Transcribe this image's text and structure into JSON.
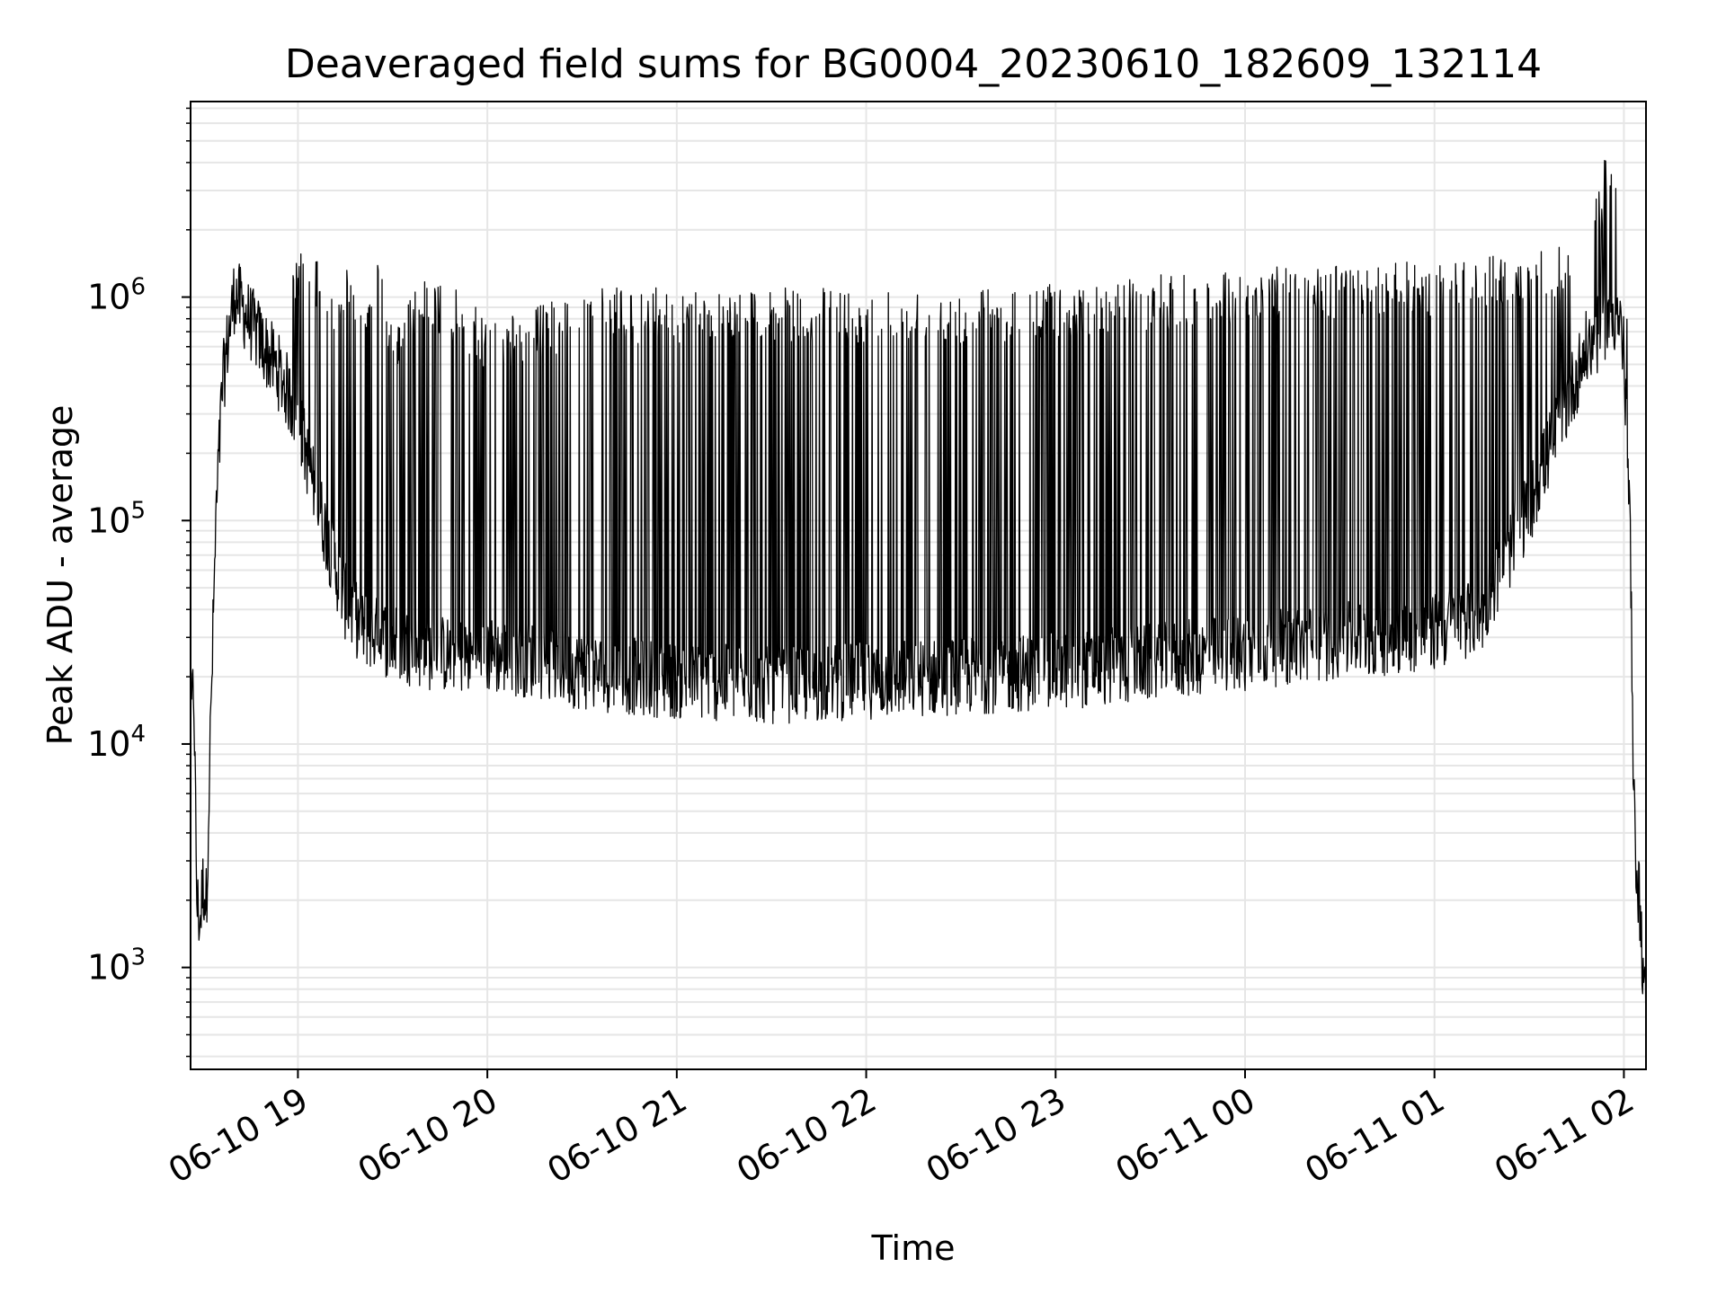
{
  "chart_data": {
    "type": "line",
    "title": "Deaveraged field sums for BG0004_20230610_182609_132114",
    "xlabel": "Time",
    "ylabel": "Peak ADU - average",
    "yscale": "log",
    "xlim": [
      "2023-06-10 18:26",
      "2023-06-11 02:07"
    ],
    "ylim": [
      350,
      7500000
    ],
    "grid": true,
    "line_color": "#000000",
    "grid_color": "#e6e6e6",
    "x_ticks": [
      {
        "label": "06-10 19",
        "value": "2023-06-10 19:00"
      },
      {
        "label": "06-10 20",
        "value": "2023-06-10 20:00"
      },
      {
        "label": "06-10 21",
        "value": "2023-06-10 21:00"
      },
      {
        "label": "06-10 22",
        "value": "2023-06-10 22:00"
      },
      {
        "label": "06-10 23",
        "value": "2023-06-10 23:00"
      },
      {
        "label": "06-11 00",
        "value": "2023-06-11 00:00"
      },
      {
        "label": "06-11 01",
        "value": "2023-06-11 01:00"
      },
      {
        "label": "06-11 02",
        "value": "2023-06-11 02:00"
      }
    ],
    "y_ticks": [
      {
        "base": "10",
        "exp": "3",
        "value": 1000
      },
      {
        "base": "10",
        "exp": "4",
        "value": 10000
      },
      {
        "base": "10",
        "exp": "5",
        "value": 100000
      },
      {
        "base": "10",
        "exp": "6",
        "value": 1000000
      }
    ],
    "series": [
      {
        "x": [
          "2023-06-10 18:26",
          "2023-06-10 18:27",
          "2023-06-10 18:28",
          "2023-06-10 18:29",
          "2023-06-10 18:30",
          "2023-06-10 18:31",
          "2023-06-10 18:32",
          "2023-06-10 18:34",
          "2023-06-10 18:36",
          "2023-06-10 18:38",
          "2023-06-10 18:40",
          "2023-06-10 18:42",
          "2023-06-10 18:45",
          "2023-06-10 18:50",
          "2023-06-10 18:55",
          "2023-06-10 19:00",
          "2023-06-10 19:05",
          "2023-06-10 19:10",
          "2023-06-10 19:15",
          "2023-06-10 19:20",
          "2023-06-10 19:25",
          "2023-06-10 19:30",
          "2023-06-10 19:40",
          "2023-06-10 19:50",
          "2023-06-10 20:00",
          "2023-06-10 20:15",
          "2023-06-10 20:30",
          "2023-06-10 20:45",
          "2023-06-10 21:00",
          "2023-06-10 21:30",
          "2023-06-10 22:00",
          "2023-06-10 22:30",
          "2023-06-10 23:00",
          "2023-06-10 23:30",
          "2023-06-11 00:00",
          "2023-06-11 00:30",
          "2023-06-11 01:00",
          "2023-06-11 01:15",
          "2023-06-11 01:30",
          "2023-06-11 01:40",
          "2023-06-11 01:48",
          "2023-06-11 01:55",
          "2023-06-11 01:58",
          "2023-06-11 02:00",
          "2023-06-11 02:01",
          "2023-06-11 02:02",
          "2023-06-11 02:03",
          "2023-06-11 02:04",
          "2023-06-11 02:05",
          "2023-06-11 02:07"
        ],
        "baseline": [
          12000,
          20000,
          2000,
          1700,
          2500,
          2000,
          8000,
          100000,
          400000,
          700000,
          1100000,
          950000,
          800000,
          600000,
          450000,
          300000,
          150000,
          80000,
          45000,
          35000,
          32000,
          30000,
          27000,
          26000,
          26000,
          25000,
          22000,
          21000,
          20000,
          19000,
          20000,
          21000,
          22000,
          24000,
          27000,
          30000,
          33000,
          40000,
          120000,
          300000,
          600000,
          800000,
          900000,
          600000,
          200000,
          100000,
          6000,
          3000,
          2000,
          600
        ],
        "peaks": [
          12000,
          24000,
          2800,
          2200,
          3000,
          2500,
          10000,
          200000,
          600000,
          1300000,
          1900000,
          1400000,
          1000000,
          900000,
          1000000,
          1600000,
          1600000,
          1000000,
          1500000,
          1000000,
          1500000,
          800000,
          1200000,
          1100000,
          800000,
          900000,
          1100000,
          1100000,
          1100000,
          1100000,
          1100000,
          1100000,
          1150000,
          1250000,
          1350000,
          1400000,
          1450000,
          1500000,
          1600000,
          1700000,
          1800000,
          4800000,
          3300000,
          1300000,
          900000,
          120000,
          6000,
          4000,
          2000,
          600
        ]
      }
    ]
  }
}
